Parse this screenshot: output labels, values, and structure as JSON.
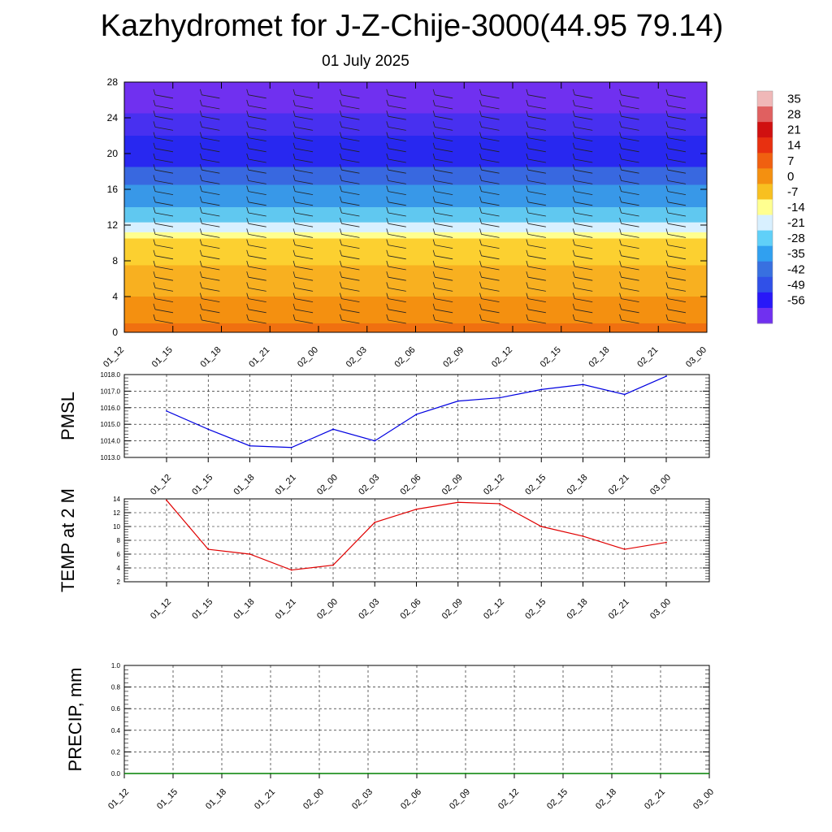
{
  "title": "Kazhydromet for J-Z-Chije-3000(44.95 79.14)",
  "subtitle": "01 July 2025",
  "colorbar": {
    "labels": [
      "35",
      "28",
      "21",
      "14",
      "7",
      "0",
      "-7",
      "-14",
      "-21",
      "-28",
      "-35",
      "-42",
      "-49",
      "-56"
    ],
    "colors": [
      "#f0b8b8",
      "#e06060",
      "#d01010",
      "#e83010",
      "#f06010",
      "#f49010",
      "#f8c020",
      "#ffff90",
      "#d8f0ff",
      "#60d0f8",
      "#30a0f0",
      "#3870e0",
      "#3050e8",
      "#2818f8",
      "#7030f0"
    ]
  },
  "chart_data": [
    {
      "name": "cross-section",
      "type": "heatmap",
      "y_ticks": [
        "0",
        "4",
        "8",
        "12",
        "16",
        "20",
        "24",
        "28"
      ],
      "ylim": [
        0,
        28
      ],
      "x_ticks": [
        "01_12",
        "01_15",
        "01_18",
        "01_21",
        "02_00",
        "02_03",
        "02_06",
        "02_09",
        "02_12",
        "02_15",
        "02_18",
        "02_21",
        "03_00"
      ],
      "layers": [
        {
          "y0": 0,
          "y1": 1,
          "color": "#f07010"
        },
        {
          "y0": 1,
          "y1": 4,
          "color": "#f49010"
        },
        {
          "y0": 4,
          "y1": 7.5,
          "color": "#f8b020"
        },
        {
          "y0": 7.5,
          "y1": 10.5,
          "color": "#fcd030"
        },
        {
          "y0": 10.5,
          "y1": 11.2,
          "color": "#ffff90"
        },
        {
          "y0": 11.2,
          "y1": 12.3,
          "color": "#d8f0ff"
        },
        {
          "y0": 12.3,
          "y1": 14,
          "color": "#60c8f0"
        },
        {
          "y0": 14,
          "y1": 16.5,
          "color": "#3898e8"
        },
        {
          "y0": 16.5,
          "y1": 18.5,
          "color": "#3868e0"
        },
        {
          "y0": 18.5,
          "y1": 22,
          "color": "#2828f0"
        },
        {
          "y0": 22,
          "y1": 24.5,
          "color": "#4830f0"
        },
        {
          "y0": 24.5,
          "y1": 28,
          "color": "#7030f0"
        }
      ]
    },
    {
      "name": "pmsl",
      "type": "line",
      "ylabel": "PMSL",
      "ylim": [
        1013.0,
        1018.0
      ],
      "y_ticks": [
        "1013.0",
        "1014.0",
        "1015.0",
        "1016.0",
        "1017.0",
        "1018.0"
      ],
      "x": [
        "01_12",
        "01_15",
        "01_18",
        "01_21",
        "02_00",
        "02_03",
        "02_06",
        "02_09",
        "02_12",
        "02_15",
        "02_18",
        "02_21",
        "03_00"
      ],
      "series": [
        {
          "values": [
            1015.8,
            1014.7,
            1013.7,
            1013.6,
            1014.7,
            1014.0,
            1015.6,
            1016.4,
            1016.6,
            1017.1,
            1017.4,
            1016.8,
            1017.9
          ],
          "color": "#0000e0"
        }
      ]
    },
    {
      "name": "temp",
      "type": "line",
      "ylabel": "TEMP at 2 M",
      "ylim": [
        2,
        14
      ],
      "y_ticks": [
        "2",
        "4",
        "6",
        "8",
        "10",
        "12",
        "14"
      ],
      "x": [
        "01_12",
        "01_15",
        "01_18",
        "01_21",
        "02_00",
        "02_03",
        "02_06",
        "02_09",
        "02_12",
        "02_15",
        "02_18",
        "02_21",
        "03_00"
      ],
      "series": [
        {
          "values": [
            13.8,
            6.7,
            6.0,
            3.7,
            4.4,
            10.6,
            12.5,
            13.5,
            13.3,
            10.0,
            8.6,
            6.7,
            7.7
          ],
          "color": "#e00000"
        }
      ]
    },
    {
      "name": "precip",
      "type": "line",
      "ylabel": "PRECIP, mm",
      "ylim": [
        0.0,
        1.0
      ],
      "y_ticks": [
        "0.0",
        "0.2",
        "0.4",
        "0.6",
        "0.8",
        "1.0"
      ],
      "x": [
        "01_12",
        "01_15",
        "01_18",
        "01_21",
        "02_00",
        "02_03",
        "02_06",
        "02_09",
        "02_12",
        "02_15",
        "02_18",
        "02_21",
        "03_00"
      ],
      "series": [
        {
          "values": [
            0,
            0,
            0,
            0,
            0,
            0,
            0,
            0,
            0,
            0,
            0,
            0,
            0
          ],
          "color": "#008000"
        }
      ]
    }
  ]
}
